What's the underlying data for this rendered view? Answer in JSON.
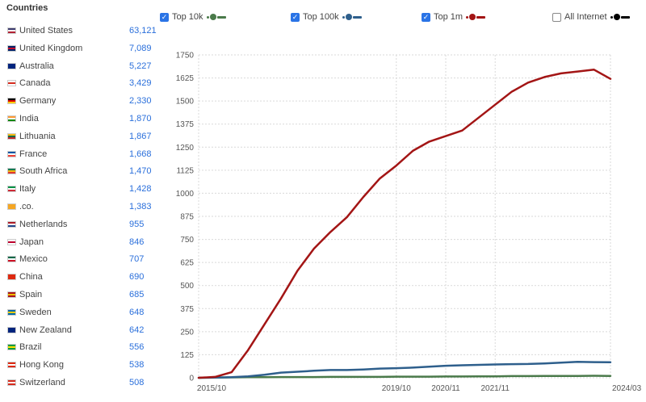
{
  "sidebar": {
    "title": "Countries",
    "countries": [
      {
        "name": "United States",
        "count": "63,121",
        "flag": [
          "#3c3b6e",
          "#ffffff",
          "#b22234"
        ]
      },
      {
        "name": "United Kingdom",
        "count": "7,089",
        "flag": [
          "#012169",
          "#c8102e",
          "#012169"
        ]
      },
      {
        "name": "Australia",
        "count": "5,227",
        "flag": [
          "#00247d",
          "#00247d",
          "#00247d"
        ]
      },
      {
        "name": "Canada",
        "count": "3,429",
        "flag": [
          "#ffffff",
          "#d52b1e",
          "#ffffff"
        ]
      },
      {
        "name": "Germany",
        "count": "2,330",
        "flag": [
          "#000000",
          "#dd0000",
          "#ffce00"
        ]
      },
      {
        "name": "India",
        "count": "1,870",
        "flag": [
          "#ff9933",
          "#ffffff",
          "#138808"
        ]
      },
      {
        "name": "Lithuania",
        "count": "1,867",
        "flag": [
          "#fdb913",
          "#006a44",
          "#c1272d"
        ]
      },
      {
        "name": "France",
        "count": "1,668",
        "flag": [
          "#0055a4",
          "#ffffff",
          "#ef4135"
        ]
      },
      {
        "name": "South Africa",
        "count": "1,470",
        "flag": [
          "#007a4d",
          "#ffb612",
          "#de3831"
        ]
      },
      {
        "name": "Italy",
        "count": "1,428",
        "flag": [
          "#009246",
          "#ffffff",
          "#ce2b37"
        ]
      },
      {
        "name": ".co.",
        "count": "1,383",
        "flag": [
          "#f5a623",
          "#f5a623",
          "#f5a623"
        ]
      },
      {
        "name": "Netherlands",
        "count": "955",
        "flag": [
          "#ae1c28",
          "#ffffff",
          "#21468b"
        ]
      },
      {
        "name": "Japan",
        "count": "846",
        "flag": [
          "#ffffff",
          "#bc002d",
          "#ffffff"
        ]
      },
      {
        "name": "Mexico",
        "count": "707",
        "flag": [
          "#006847",
          "#ffffff",
          "#ce1126"
        ]
      },
      {
        "name": "China",
        "count": "690",
        "flag": [
          "#de2910",
          "#de2910",
          "#de2910"
        ]
      },
      {
        "name": "Spain",
        "count": "685",
        "flag": [
          "#aa151b",
          "#f1bf00",
          "#aa151b"
        ]
      },
      {
        "name": "Sweden",
        "count": "648",
        "flag": [
          "#006aa7",
          "#fecc00",
          "#006aa7"
        ]
      },
      {
        "name": "New Zealand",
        "count": "642",
        "flag": [
          "#00247d",
          "#00247d",
          "#00247d"
        ]
      },
      {
        "name": "Brazil",
        "count": "556",
        "flag": [
          "#009c3b",
          "#ffdf00",
          "#009c3b"
        ]
      },
      {
        "name": "Hong Kong",
        "count": "538",
        "flag": [
          "#de2910",
          "#ffffff",
          "#de2910"
        ]
      },
      {
        "name": "Switzerland",
        "count": "508",
        "flag": [
          "#d52b1e",
          "#ffffff",
          "#d52b1e"
        ]
      }
    ]
  },
  "legend": [
    {
      "label": "Top 10k",
      "checked": true,
      "color": "#4a7a4a"
    },
    {
      "label": "Top 100k",
      "checked": true,
      "color": "#2e5f8c"
    },
    {
      "label": "Top 1m",
      "checked": true,
      "color": "#a31515"
    },
    {
      "label": "All Internet",
      "checked": false,
      "color": "#000000"
    }
  ],
  "chart_data": {
    "type": "line",
    "x": [
      "2015/10",
      "2016/02",
      "2016/06",
      "2016/10",
      "2017/02",
      "2017/06",
      "2017/10",
      "2018/02",
      "2018/06",
      "2018/10",
      "2019/02",
      "2019/06",
      "2019/10",
      "2020/02",
      "2020/06",
      "2020/11",
      "2021/02",
      "2021/06",
      "2021/11",
      "2022/02",
      "2022/06",
      "2022/10",
      "2023/02",
      "2023/06",
      "2023/10",
      "2024/03"
    ],
    "x_tick_labels": [
      "2015/10",
      "2019/10",
      "2020/11",
      "2021/11",
      "2024/03"
    ],
    "y_ticks": [
      0,
      125,
      250,
      375,
      500,
      625,
      750,
      875,
      1000,
      1125,
      1250,
      1375,
      1500,
      1625,
      1750
    ],
    "ylim": [
      0,
      1750
    ],
    "grid": true,
    "series": [
      {
        "name": "Top 10k",
        "color": "#4a7a4a",
        "values": [
          0,
          1,
          2,
          3,
          3,
          4,
          4,
          4,
          5,
          5,
          5,
          5,
          6,
          6,
          6,
          7,
          7,
          8,
          8,
          9,
          9,
          10,
          10,
          10,
          11,
          10
        ]
      },
      {
        "name": "Top 100k",
        "color": "#2e5f8c",
        "values": [
          0,
          1,
          3,
          8,
          16,
          28,
          33,
          38,
          42,
          42,
          45,
          50,
          52,
          55,
          60,
          65,
          68,
          70,
          72,
          74,
          75,
          78,
          82,
          86,
          85,
          84
        ]
      },
      {
        "name": "Top 1m",
        "color": "#a31515",
        "values": [
          0,
          5,
          30,
          150,
          290,
          430,
          580,
          700,
          790,
          870,
          980,
          1080,
          1150,
          1230,
          1280,
          1310,
          1340,
          1410,
          1480,
          1550,
          1600,
          1630,
          1650,
          1660,
          1670,
          1620
        ]
      }
    ]
  }
}
